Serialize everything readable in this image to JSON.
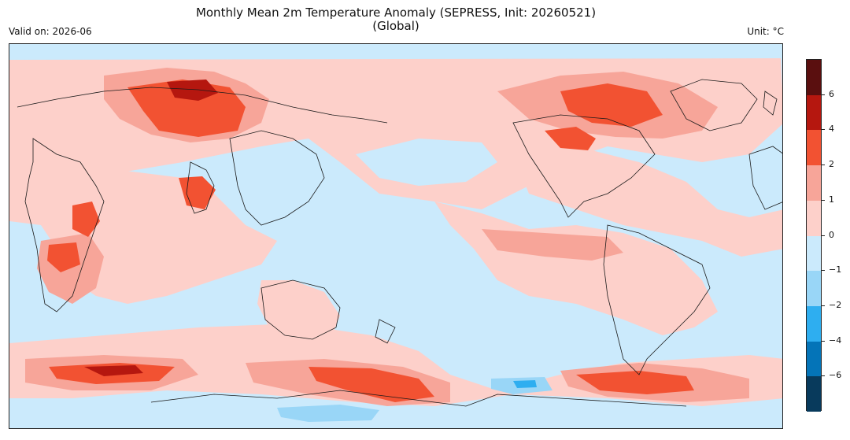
{
  "title_line1": "Monthly Mean 2m Temperature Anomaly (SEPRESS, Init: 20260521)",
  "title_line2": "(Global)",
  "valid_label": "Valid on: 2026-06",
  "unit_label": "Unit: °C",
  "colorbar": {
    "ticks": [
      "6",
      "4",
      "2",
      "1",
      "0",
      "−1",
      "−2",
      "−4",
      "−6"
    ],
    "colors": [
      "#5a0f0f",
      "#b5170f",
      "#f25232",
      "#f7a599",
      "#fdd0ca",
      "#cbeafc",
      "#99d6f7",
      "#2eaef0",
      "#0474b8",
      "#083a5c"
    ]
  },
  "palette": {
    "ocean_neutral": "#cbeafc",
    "warm_light": "#fdd0ca",
    "warm_mid": "#f7a599",
    "warm_strong": "#f25232",
    "warm_extreme": "#b5170f",
    "cool_light": "#99d6f7",
    "cool_mid": "#2eaef0"
  }
}
